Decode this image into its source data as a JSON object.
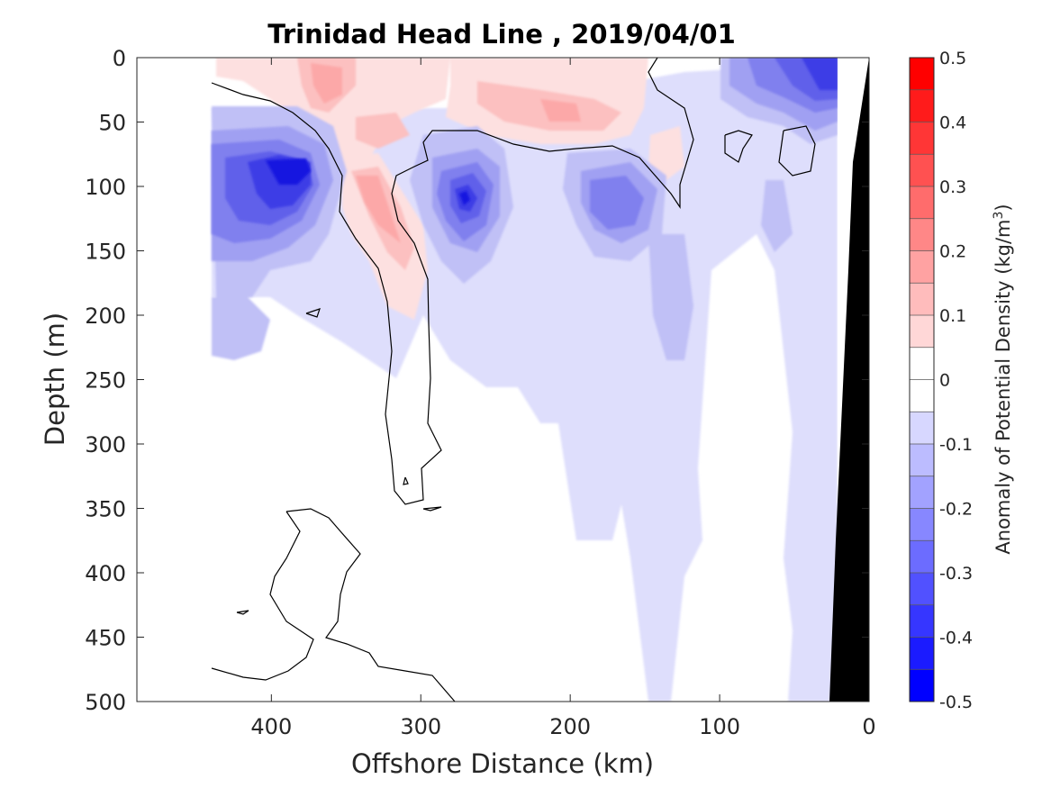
{
  "chart_data": {
    "type": "contour",
    "title": "Trinidad Head Line , 2019/04/01",
    "xlabel": "Offshore Distance (km)",
    "ylabel": "Depth (m)",
    "xlim": [
      490,
      0
    ],
    "ylim": [
      0,
      500
    ],
    "x_reversed": true,
    "y_reversed": true,
    "x_ticks": [
      400,
      300,
      200,
      100,
      0
    ],
    "y_ticks": [
      0,
      50,
      100,
      150,
      200,
      250,
      300,
      350,
      400,
      450,
      500
    ],
    "colorbar": {
      "label_main": "Anomaly of Potential Density (kg/m",
      "label_sup": "3",
      "label_end": ")",
      "range": [
        -0.5,
        0.5
      ],
      "levels": [
        -0.5,
        -0.45,
        -0.4,
        -0.35,
        -0.3,
        -0.25,
        -0.2,
        -0.15,
        -0.1,
        -0.05,
        0,
        0.05,
        0.1,
        0.15,
        0.2,
        0.25,
        0.3,
        0.35,
        0.4,
        0.45,
        0.5
      ],
      "ticks": [
        "0.5",
        "0.4",
        "0.3",
        "0.2",
        "0.1",
        "0",
        "-0.1",
        "-0.2",
        "-0.3",
        "-0.4",
        "-0.5"
      ]
    },
    "zero_contour": true,
    "features": [
      {
        "kind": "positive",
        "x_range": [
          440,
          290
        ],
        "depth_range": [
          0,
          190
        ],
        "peak": 0.2
      },
      {
        "kind": "positive",
        "x_range": [
          280,
          160
        ],
        "depth_range": [
          10,
          70
        ],
        "peak": 0.15
      },
      {
        "kind": "negative",
        "x_range": [
          440,
          345
        ],
        "depth_range": [
          40,
          210
        ],
        "peak": -0.45
      },
      {
        "kind": "negative",
        "x_range": [
          310,
          225
        ],
        "depth_range": [
          60,
          180
        ],
        "peak": -0.35
      },
      {
        "kind": "negative",
        "x_range": [
          210,
          120
        ],
        "depth_range": [
          70,
          170
        ],
        "peak": -0.25
      },
      {
        "kind": "negative",
        "x_range": [
          100,
          20
        ],
        "depth_range": [
          0,
          60
        ],
        "peak": -0.35
      },
      {
        "kind": "negative_weak",
        "x_range": [
          200,
          110
        ],
        "depth_range": [
          150,
          500
        ],
        "peak": -0.1
      }
    ],
    "bathymetry_color": "#000000",
    "colors": {
      "negative": "#0000ff",
      "positive": "#ff0000",
      "neutral": "#ffffff"
    }
  }
}
